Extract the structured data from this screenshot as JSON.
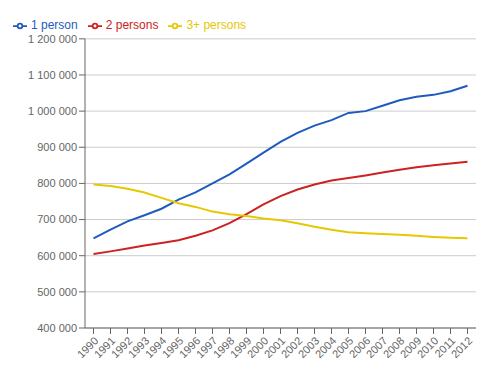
{
  "chart_data": {
    "type": "line",
    "x": [
      1990,
      1991,
      1992,
      1993,
      1994,
      1995,
      1996,
      1997,
      1998,
      1999,
      2000,
      2001,
      2002,
      2003,
      2004,
      2005,
      2006,
      2007,
      2008,
      2009,
      2010,
      2011,
      2012
    ],
    "series": [
      {
        "name": "1 person",
        "color": "#1f5bbd",
        "values": [
          648000,
          672000,
          695000,
          712000,
          730000,
          755000,
          775000,
          800000,
          825000,
          855000,
          885000,
          915000,
          940000,
          960000,
          975000,
          995000,
          1000000,
          1015000,
          1030000,
          1040000,
          1045000,
          1055000,
          1070000
        ]
      },
      {
        "name": "2 persons",
        "color": "#cc2222",
        "values": [
          605000,
          612000,
          620000,
          628000,
          635000,
          643000,
          655000,
          670000,
          690000,
          715000,
          742000,
          765000,
          783000,
          797000,
          808000,
          815000,
          822000,
          830000,
          838000,
          845000,
          850000,
          855000,
          860000
        ]
      },
      {
        "name": "3+ persons",
        "color": "#e6c800",
        "values": [
          797000,
          793000,
          785000,
          775000,
          760000,
          745000,
          735000,
          722000,
          715000,
          710000,
          703000,
          698000,
          690000,
          680000,
          672000,
          665000,
          662000,
          660000,
          658000,
          655000,
          652000,
          650000,
          648000
        ]
      }
    ],
    "xlim": [
      1989.5,
      2012.5
    ],
    "xticks": [
      1990,
      1991,
      1992,
      1993,
      1994,
      1995,
      1996,
      1997,
      1998,
      1999,
      2000,
      2001,
      2002,
      2003,
      2004,
      2005,
      2006,
      2007,
      2008,
      2009,
      2010,
      2011,
      2012
    ],
    "ylim": [
      400000,
      1200000
    ],
    "yticks": [
      {
        "value": 400000,
        "label": "400 000"
      },
      {
        "value": 500000,
        "label": "500 000"
      },
      {
        "value": 600000,
        "label": "600 000"
      },
      {
        "value": 700000,
        "label": "700 000"
      },
      {
        "value": 800000,
        "label": "800 000"
      },
      {
        "value": 900000,
        "label": "900 000"
      },
      {
        "value": 1000000,
        "label": "1 000 000"
      },
      {
        "value": 1100000,
        "label": "1 100 000"
      },
      {
        "value": 1200000,
        "label": "1 200 000"
      }
    ],
    "grid": true,
    "legend": "upper left"
  }
}
